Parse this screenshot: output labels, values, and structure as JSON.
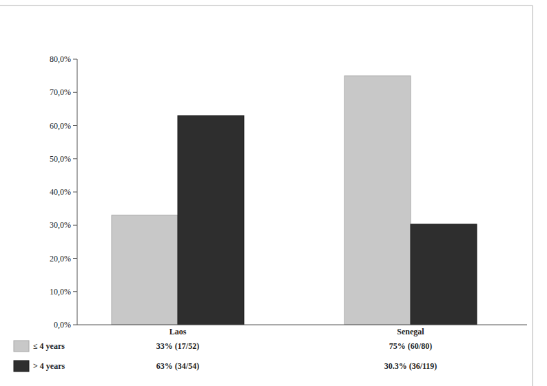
{
  "chart_data": {
    "type": "bar",
    "categories": [
      "Laos",
      "Senegal"
    ],
    "series": [
      {
        "name": "≤ 4 years",
        "color": "#c8c8c8",
        "values": [
          33,
          75
        ],
        "value_labels": [
          "33% (17/52)",
          "75% (60/80)"
        ]
      },
      {
        "name": "> 4 years",
        "color": "#2e2e2e",
        "values": [
          63,
          30.3
        ],
        "value_labels": [
          "63% (34/54)",
          "30.3% (36/119)"
        ]
      }
    ],
    "ylim": [
      0,
      80
    ],
    "yticks": [
      {
        "value": 0,
        "label": "0,0%"
      },
      {
        "value": 10,
        "label": "10,0%"
      },
      {
        "value": 20,
        "label": "20,0%"
      },
      {
        "value": 30,
        "label": "30,0%"
      },
      {
        "value": 40,
        "label": "40,0%"
      },
      {
        "value": 50,
        "label": "50,0%"
      },
      {
        "value": 60,
        "label": "60,0%"
      },
      {
        "value": 70,
        "label": "70,0%"
      },
      {
        "value": 80,
        "label": "80,0%"
      }
    ],
    "grid": false,
    "legend": "bottom-left",
    "data_labels": true
  }
}
